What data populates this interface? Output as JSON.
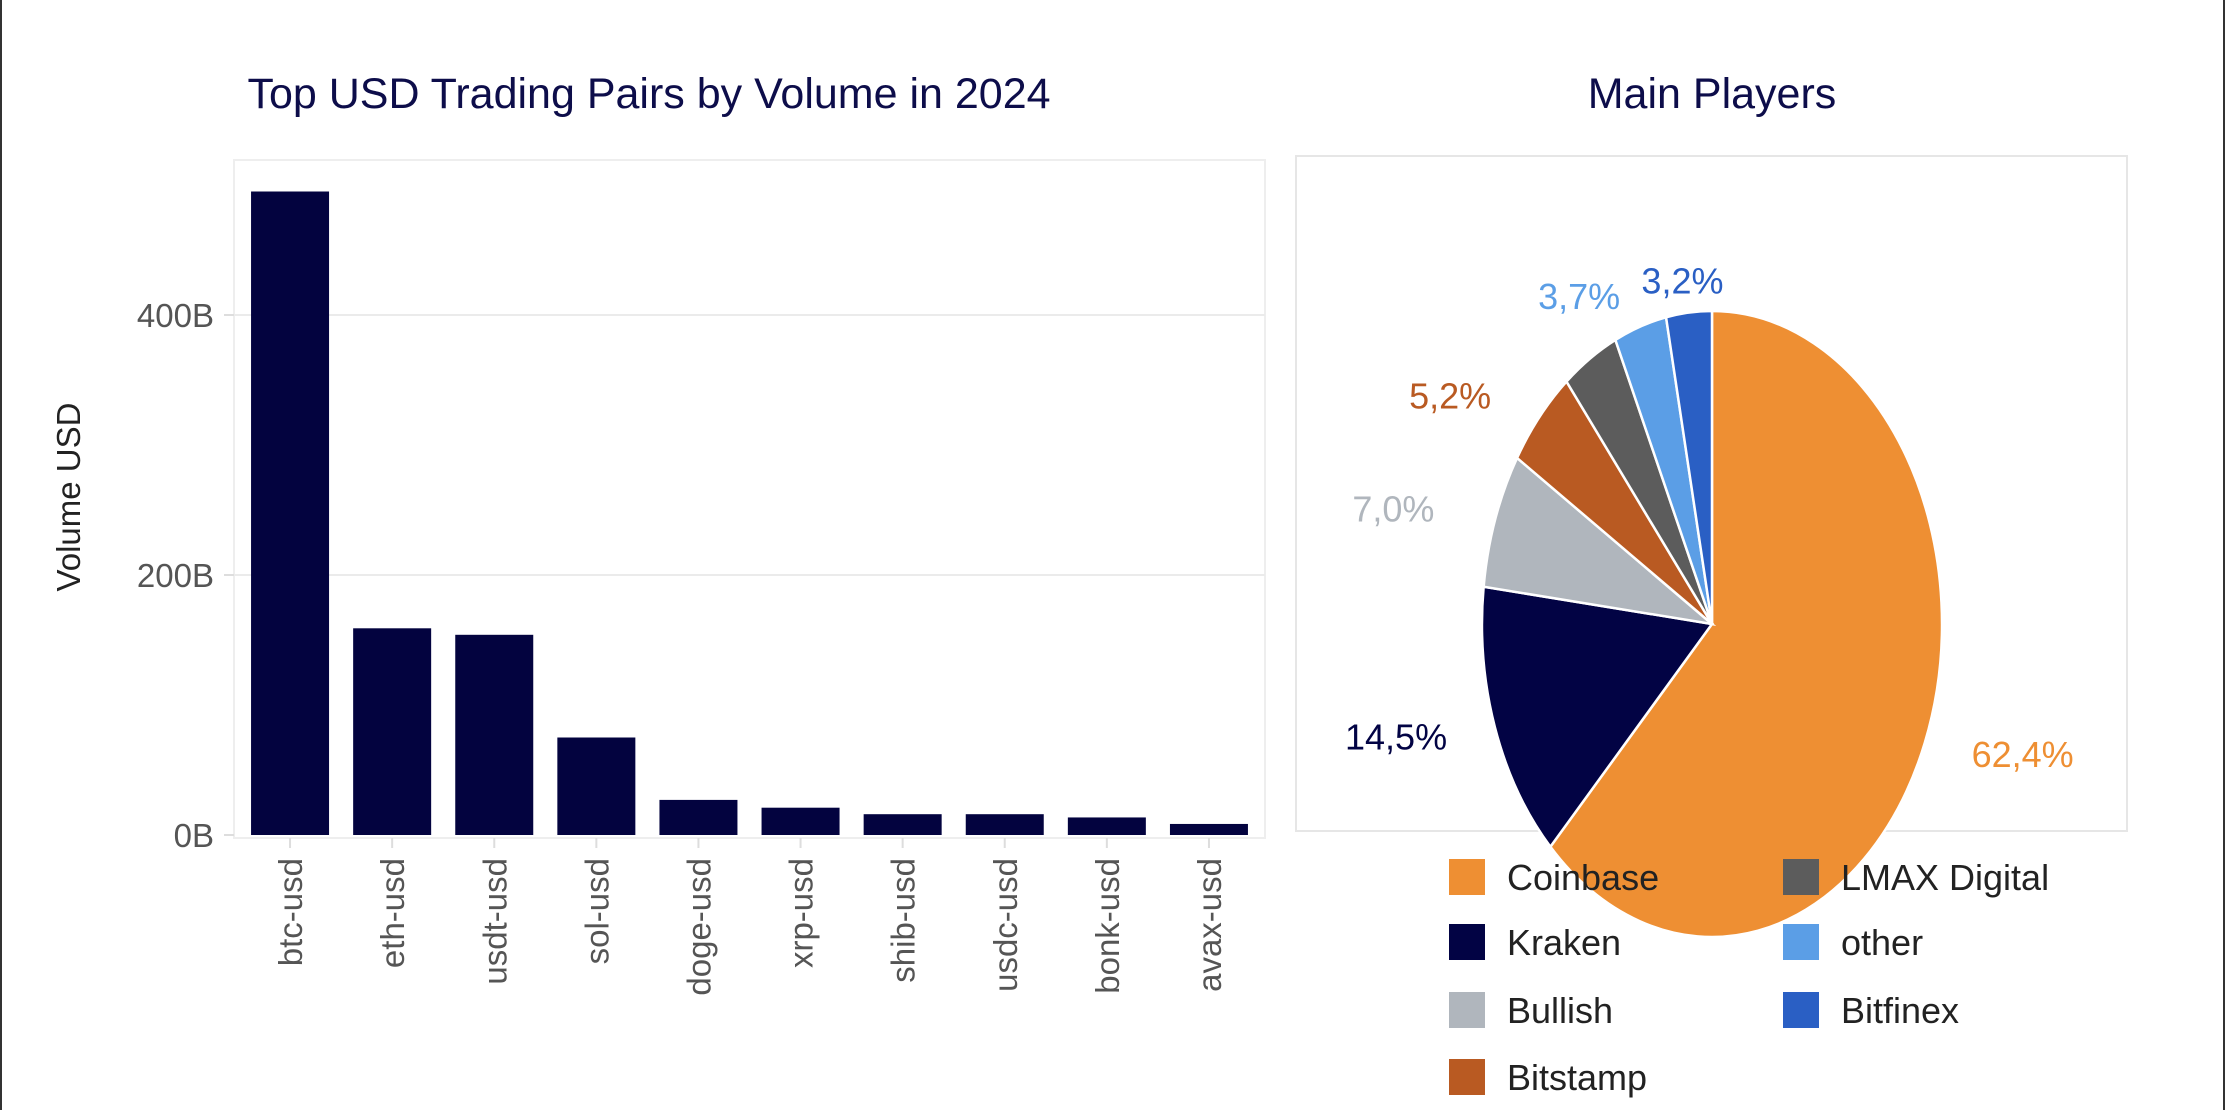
{
  "chart_data": [
    {
      "type": "bar",
      "title": "Top USD Trading Pairs by Volume in 2024",
      "xlabel": "",
      "ylabel": "Volume USD",
      "categories": [
        "btc-usd",
        "eth-usd",
        "usdt-usd",
        "sol-usd",
        "doge-usd",
        "xrp-usd",
        "shib-usd",
        "usdc-usd",
        "bonk-usd",
        "avax-usd"
      ],
      "values": [
        495,
        159,
        154,
        75,
        27,
        21,
        16,
        16,
        13.5,
        8.5
      ],
      "unit": "B",
      "ylim": [
        0,
        520
      ],
      "yticks": [
        0,
        200,
        400
      ],
      "ytick_labels": [
        "0B",
        "200B",
        "400B"
      ],
      "grid": true,
      "color": "#03033f"
    },
    {
      "type": "pie",
      "title": "Main Players",
      "legend_position": "bottom",
      "slices": [
        {
          "name": "Coinbase",
          "value": 62.4,
          "label": "62,4%",
          "color": "#ee8f33"
        },
        {
          "name": "Kraken",
          "value": 14.5,
          "label": "14,5%",
          "color": "#020344"
        },
        {
          "name": "Bullish",
          "value": 7.0,
          "label": "7,0%",
          "color": "#b0b6bd"
        },
        {
          "name": "Bitstamp",
          "value": 5.2,
          "label": "5,2%",
          "color": "#b95a22"
        },
        {
          "name": "LMAX Digital",
          "value": 4.0,
          "label": "",
          "color": "#5c5c5c"
        },
        {
          "name": "other",
          "value": 3.7,
          "label": "3,7%",
          "color": "#5b9ee6"
        },
        {
          "name": "Bitfinex",
          "value": 3.2,
          "label": "3,2%",
          "color": "#2a5fc4"
        }
      ]
    }
  ]
}
